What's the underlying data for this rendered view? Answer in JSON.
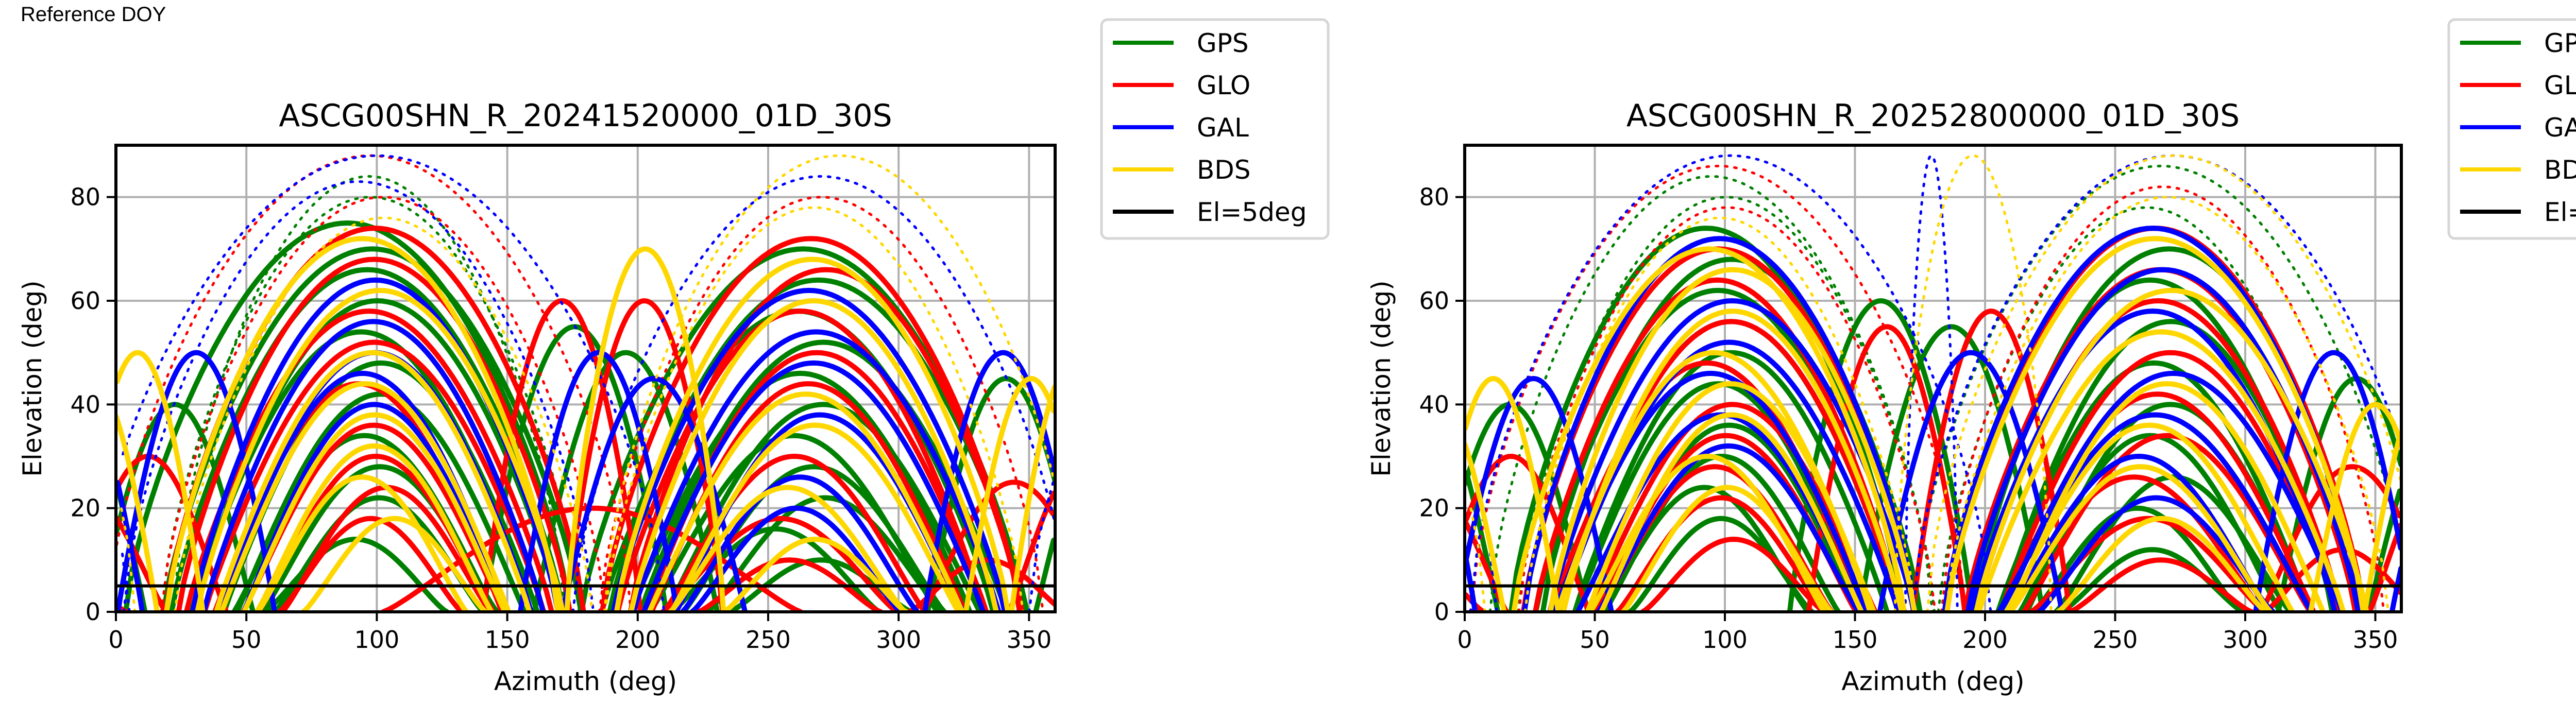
{
  "header": {
    "reference_label": "Reference DOY"
  },
  "chart_data": [
    {
      "type": "scatter",
      "title": "ASCG00SHN_R_20241520000_01D_30S",
      "xlabel": "Azimuth (deg)",
      "ylabel": "Elevation (deg)",
      "xlim": [
        0,
        360
      ],
      "ylim": [
        0,
        90
      ],
      "xticks": [
        0,
        50,
        100,
        150,
        200,
        250,
        300,
        350
      ],
      "yticks": [
        0,
        20,
        40,
        60,
        80
      ],
      "grid": true,
      "legend_placement": "outside-top-right",
      "reference_line": {
        "label": "El=5deg",
        "elevation": 5,
        "color": "#000000"
      },
      "series": [
        {
          "name": "GPS",
          "color": "#008000",
          "tracks": [
            [
              100,
              84,
              150
            ],
            [
              95,
              80,
              160
            ],
            [
              90,
              75,
              170
            ],
            [
              100,
              70,
              160
            ],
            [
              95,
              66,
              150
            ],
            [
              100,
              60,
              140
            ],
            [
              95,
              54,
              130
            ],
            [
              100,
              48,
              120
            ],
            [
              100,
              42,
              110
            ],
            [
              95,
              34,
              100
            ],
            [
              100,
              28,
              90
            ],
            [
              100,
              22,
              80
            ],
            [
              90,
              14,
              70
            ],
            [
              265,
              70,
              170
            ],
            [
              270,
              64,
              160
            ],
            [
              260,
              58,
              150
            ],
            [
              270,
              52,
              140
            ],
            [
              265,
              46,
              130
            ],
            [
              270,
              40,
              120
            ],
            [
              260,
              34,
              110
            ],
            [
              265,
              28,
              100
            ],
            [
              270,
              22,
              90
            ],
            [
              255,
              16,
              80
            ],
            [
              270,
              10,
              70
            ],
            [
              20,
              40,
              60
            ],
            [
              340,
              45,
              60
            ],
            [
              175,
              55,
              70
            ],
            [
              195,
              50,
              70
            ]
          ]
        },
        {
          "name": "GLO",
          "color": "#ff0000",
          "tracks": [
            [
              95,
              88,
              200
            ],
            [
              100,
              80,
              170
            ],
            [
              100,
              74,
              160
            ],
            [
              100,
              68,
              150
            ],
            [
              95,
              58,
              140
            ],
            [
              100,
              52,
              130
            ],
            [
              95,
              44,
              110
            ],
            [
              100,
              36,
              100
            ],
            [
              100,
              30,
              90
            ],
            [
              105,
              24,
              80
            ],
            [
              95,
              18,
              70
            ],
            [
              270,
              80,
              170
            ],
            [
              265,
              72,
              160
            ],
            [
              270,
              66,
              150
            ],
            [
              265,
              58,
              140
            ],
            [
              270,
              50,
              130
            ],
            [
              265,
              44,
              120
            ],
            [
              260,
              30,
              100
            ],
            [
              255,
              18,
              90
            ],
            [
              260,
              10,
              70
            ],
            [
              180,
              20,
              160
            ],
            [
              15,
              30,
              60
            ],
            [
              345,
              25,
              70
            ],
            [
              335,
              10,
              60
            ],
            [
              170,
              60,
              60
            ],
            [
              200,
              60,
              60
            ]
          ]
        },
        {
          "name": "GAL",
          "color": "#0000ff",
          "tracks": [
            [
              100,
              88,
              220
            ],
            [
              95,
              83,
              180
            ],
            [
              100,
              64,
              140
            ],
            [
              100,
              56,
              130
            ],
            [
              100,
              50,
              120
            ],
            [
              95,
              46,
              110
            ],
            [
              100,
              40,
              100
            ],
            [
              270,
              84,
              190
            ],
            [
              265,
              62,
              150
            ],
            [
              270,
              54,
              140
            ],
            [
              265,
              48,
              130
            ],
            [
              270,
              38,
              110
            ],
            [
              260,
              26,
              90
            ],
            [
              260,
              20,
              80
            ],
            [
              30,
              50,
              60
            ],
            [
              340,
              50,
              60
            ],
            [
              185,
              50,
              60
            ],
            [
              205,
              45,
              70
            ]
          ]
        },
        {
          "name": "BDS",
          "color": "#ffd700",
          "tracks": [
            [
              100,
              76,
              160
            ],
            [
              95,
              72,
              150
            ],
            [
              100,
              62,
              140
            ],
            [
              100,
              50,
              120
            ],
            [
              95,
              44,
              110
            ],
            [
              100,
              38,
              100
            ],
            [
              100,
              32,
              90
            ],
            [
              95,
              26,
              80
            ],
            [
              105,
              18,
              70
            ],
            [
              275,
              88,
              180
            ],
            [
              270,
              78,
              160
            ],
            [
              265,
              68,
              150
            ],
            [
              270,
              60,
              140
            ],
            [
              265,
              42,
              120
            ],
            [
              270,
              36,
              110
            ],
            [
              260,
              24,
              90
            ],
            [
              265,
              14,
              70
            ],
            [
              10,
              50,
              50
            ],
            [
              350,
              45,
              50
            ],
            [
              205,
              70,
              60
            ]
          ]
        }
      ]
    },
    {
      "type": "scatter",
      "title": "ASCG00SHN_R_20252800000_01D_30S",
      "xlabel": "Azimuth (deg)",
      "ylabel": "Elevation (deg)",
      "xlim": [
        0,
        360
      ],
      "ylim": [
        0,
        90
      ],
      "xticks": [
        0,
        50,
        100,
        150,
        200,
        250,
        300,
        350
      ],
      "yticks": [
        0,
        20,
        40,
        60,
        80
      ],
      "grid": true,
      "legend_placement": "outside-top-right",
      "reference_line": {
        "label": "El=5deg",
        "elevation": 5,
        "color": "#000000"
      },
      "series": [
        {
          "name": "GPS",
          "color": "#008000",
          "tracks": [
            [
              95,
              84,
              170
            ],
            [
              100,
              80,
              160
            ],
            [
              95,
              74,
              150
            ],
            [
              100,
              68,
              145
            ],
            [
              95,
              62,
              140
            ],
            [
              100,
              56,
              130
            ],
            [
              100,
              50,
              120
            ],
            [
              95,
              44,
              110
            ],
            [
              100,
              36,
              100
            ],
            [
              100,
              30,
              90
            ],
            [
              95,
              24,
              80
            ],
            [
              100,
              18,
              70
            ],
            [
              270,
              86,
              190
            ],
            [
              265,
              78,
              160
            ],
            [
              270,
              70,
              150
            ],
            [
              265,
              64,
              140
            ],
            [
              270,
              56,
              130
            ],
            [
              265,
              48,
              120
            ],
            [
              270,
              40,
              110
            ],
            [
              265,
              34,
              100
            ],
            [
              270,
              26,
              90
            ],
            [
              260,
              20,
              80
            ],
            [
              265,
              12,
              70
            ],
            [
              15,
              40,
              60
            ],
            [
              345,
              45,
              60
            ],
            [
              160,
              60,
              70
            ],
            [
              190,
              55,
              70
            ]
          ]
        },
        {
          "name": "GLO",
          "color": "#ff0000",
          "tracks": [
            [
              95,
              86,
              190
            ],
            [
              100,
              78,
              160
            ],
            [
              95,
              70,
              150
            ],
            [
              100,
              64,
              140
            ],
            [
              100,
              56,
              130
            ],
            [
              95,
              48,
              120
            ],
            [
              100,
              40,
              110
            ],
            [
              100,
              34,
              100
            ],
            [
              95,
              28,
              90
            ],
            [
              100,
              22,
              80
            ],
            [
              105,
              14,
              70
            ],
            [
              270,
              82,
              170
            ],
            [
              265,
              74,
              160
            ],
            [
              270,
              66,
              150
            ],
            [
              265,
              60,
              140
            ],
            [
              270,
              50,
              130
            ],
            [
              265,
              42,
              120
            ],
            [
              270,
              34,
              110
            ],
            [
              260,
              26,
              100
            ],
            [
              265,
              18,
              90
            ],
            [
              265,
              10,
              70
            ],
            [
              20,
              30,
              60
            ],
            [
              340,
              28,
              70
            ],
            [
              335,
              12,
              60
            ],
            [
              165,
              55,
              60
            ],
            [
              200,
              58,
              60
            ]
          ]
        },
        {
          "name": "GAL",
          "color": "#0000ff",
          "tracks": [
            [
              100,
              88,
              200
            ],
            [
              95,
              72,
              150
            ],
            [
              100,
              60,
              140
            ],
            [
              100,
              52,
              130
            ],
            [
              95,
              46,
              120
            ],
            [
              100,
              38,
              110
            ],
            [
              100,
              32,
              100
            ],
            [
              270,
              88,
              200
            ],
            [
              265,
              74,
              160
            ],
            [
              270,
              66,
              150
            ],
            [
              265,
              58,
              140
            ],
            [
              270,
              46,
              130
            ],
            [
              265,
              38,
              120
            ],
            [
              260,
              30,
              100
            ],
            [
              265,
              22,
              90
            ],
            [
              25,
              45,
              60
            ],
            [
              335,
              50,
              60
            ],
            [
              178,
              88,
              20
            ],
            [
              195,
              50,
              70
            ]
          ]
        },
        {
          "name": "BDS",
          "color": "#ffd700",
          "tracks": [
            [
              100,
              76,
              150
            ],
            [
              95,
              70,
              150
            ],
            [
              100,
              66,
              140
            ],
            [
              100,
              58,
              130
            ],
            [
              95,
              50,
              120
            ],
            [
              100,
              44,
              110
            ],
            [
              100,
              38,
              100
            ],
            [
              95,
              30,
              90
            ],
            [
              100,
              24,
              80
            ],
            [
              275,
              88,
              190
            ],
            [
              270,
              80,
              170
            ],
            [
              265,
              72,
              160
            ],
            [
              270,
              62,
              150
            ],
            [
              265,
              54,
              140
            ],
            [
              270,
              44,
              120
            ],
            [
              265,
              36,
              110
            ],
            [
              260,
              28,
              100
            ],
            [
              270,
              18,
              80
            ],
            [
              10,
              45,
              50
            ],
            [
              350,
              40,
              50
            ],
            [
              195,
              88,
              60
            ]
          ]
        }
      ]
    }
  ],
  "legend": {
    "items": [
      {
        "label": "GPS",
        "color": "#008000"
      },
      {
        "label": "GLO",
        "color": "#ff0000"
      },
      {
        "label": "GAL",
        "color": "#0000ff"
      },
      {
        "label": "BDS",
        "color": "#ffd700"
      },
      {
        "label": "El=5deg",
        "color": "#000000"
      }
    ]
  }
}
